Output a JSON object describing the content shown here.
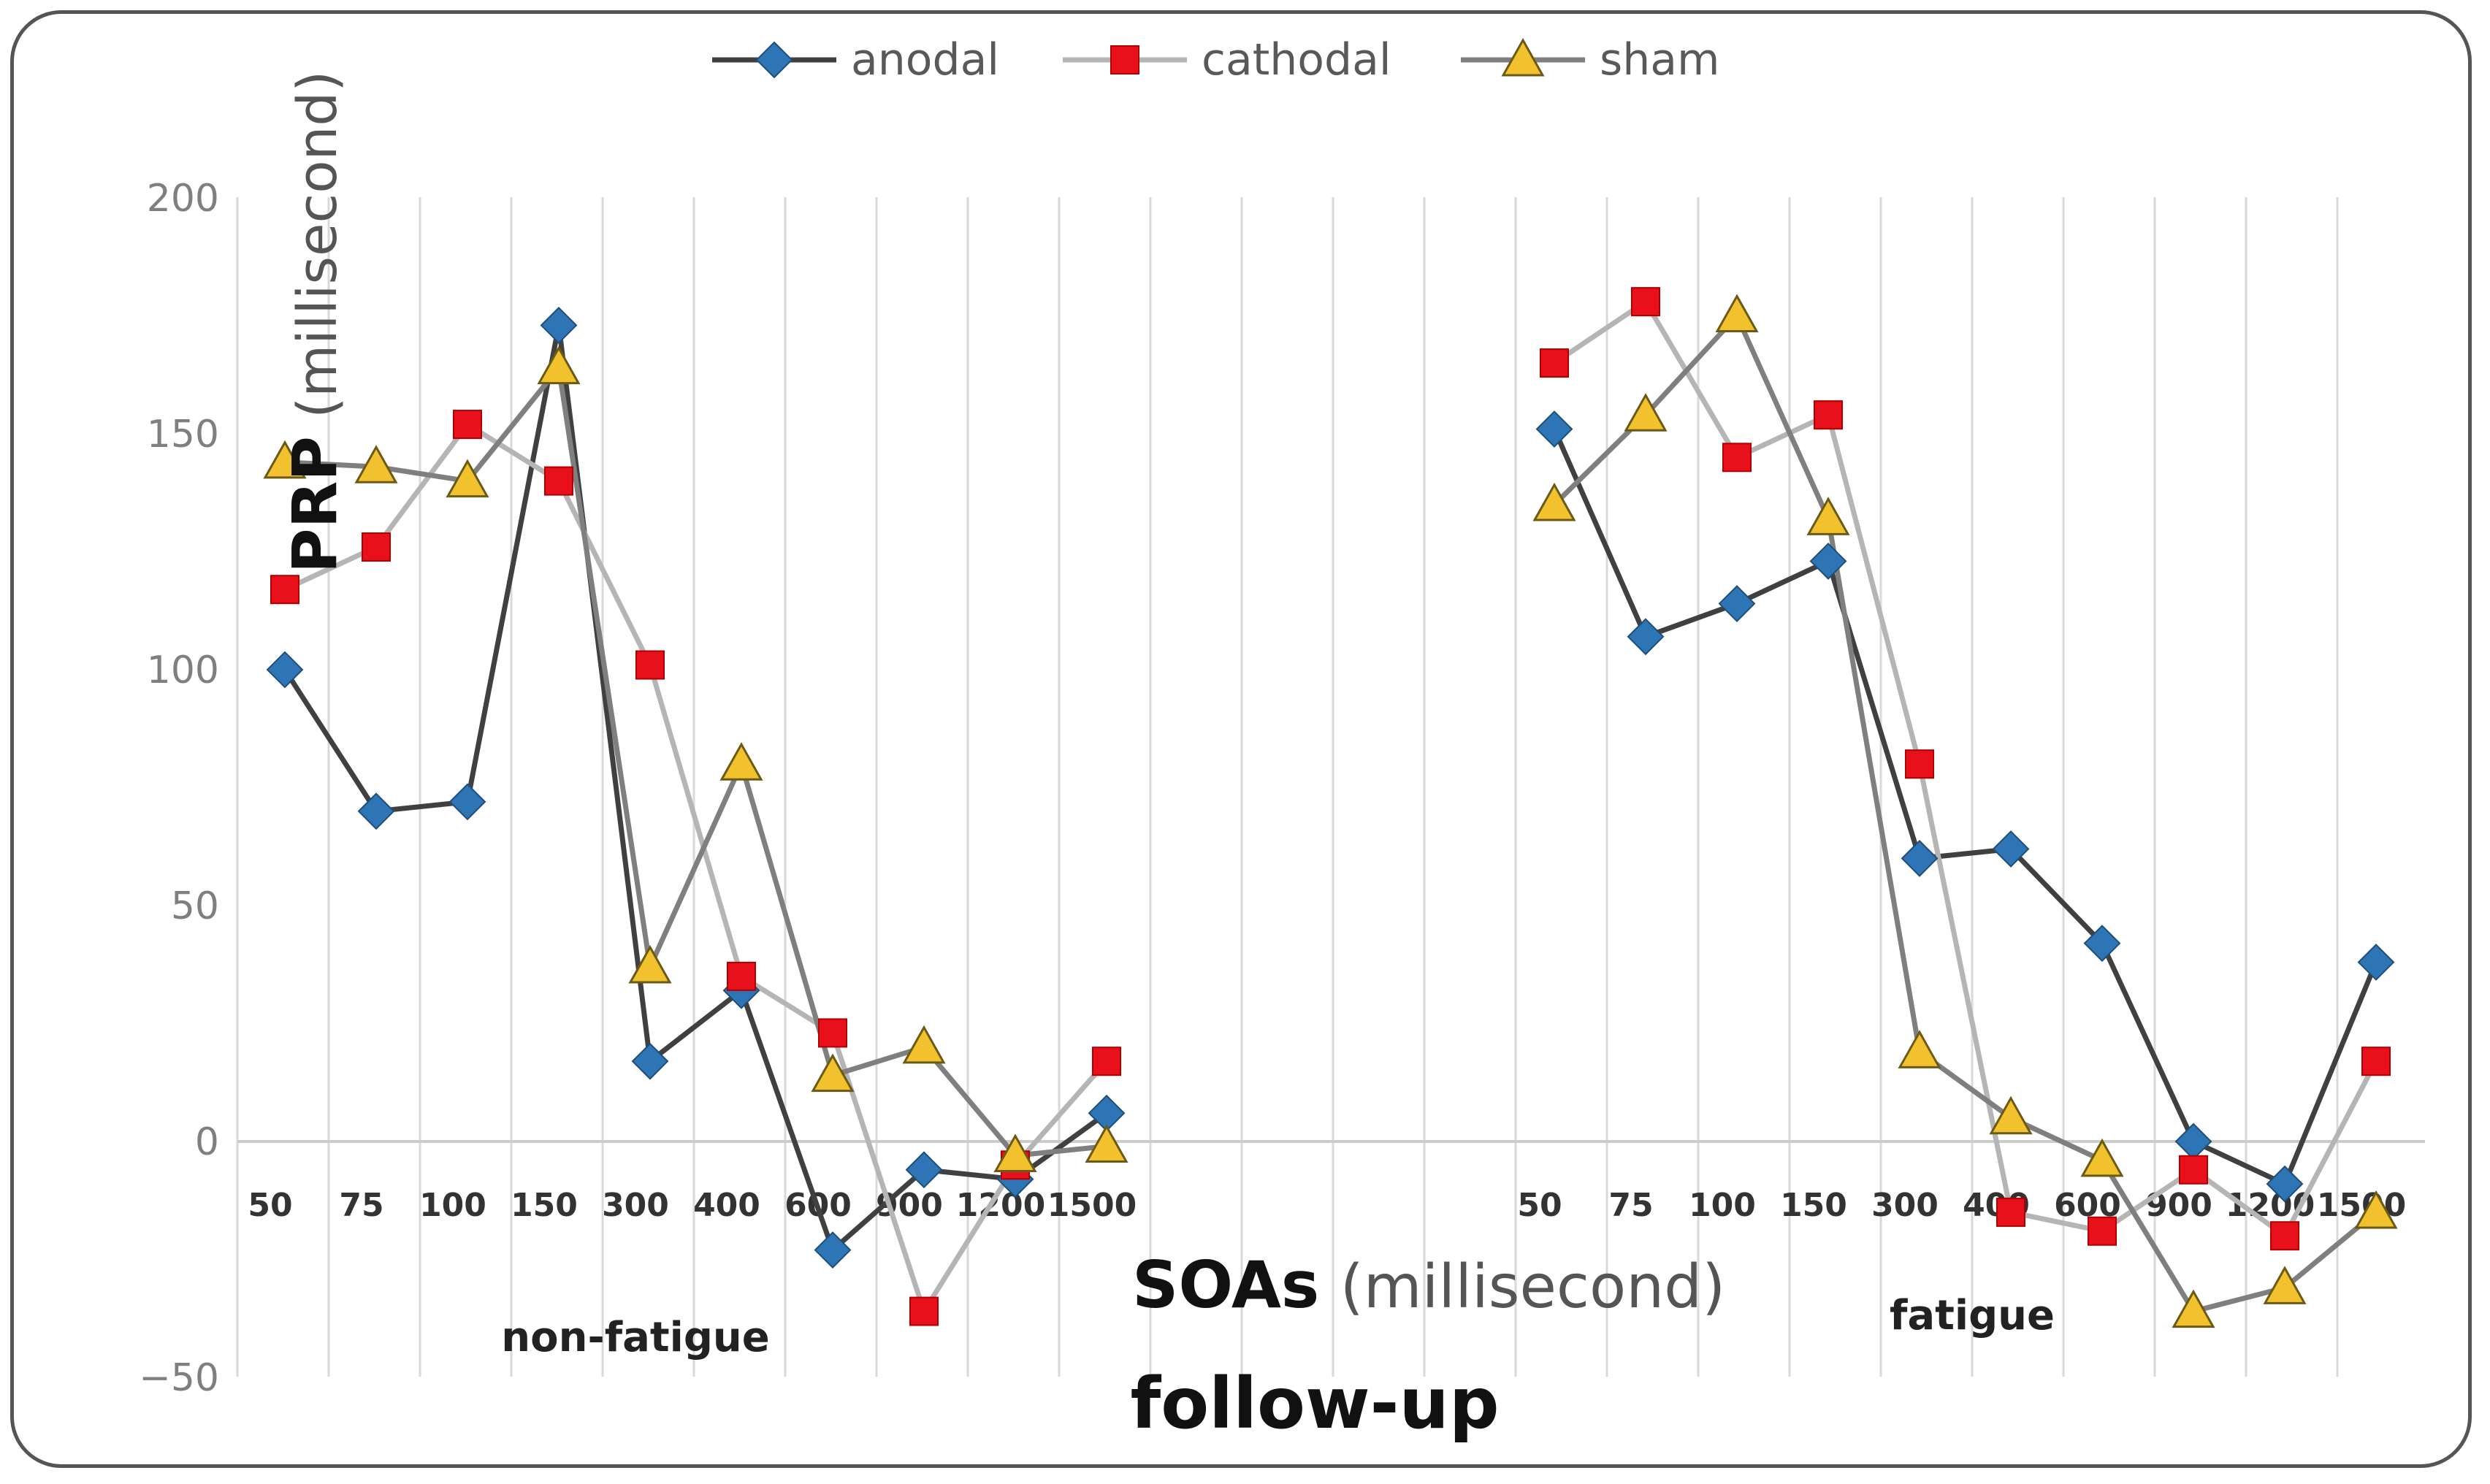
{
  "chart_data": {
    "type": "line",
    "categories": [
      "50",
      "75",
      "100",
      "150",
      "300",
      "400",
      "600",
      "900",
      "1200",
      "1500"
    ],
    "groups": [
      "non-fatigue",
      "fatigue"
    ],
    "title": "follow-up",
    "xlabel": {
      "bold": "SOAs",
      "light": "(millisecond)"
    },
    "ylabel": {
      "bold": "PRP",
      "light": "(millisecond)"
    },
    "ylim": [
      -50,
      200
    ],
    "yticks": [
      "200",
      "150",
      "100",
      "50",
      "0",
      "−50"
    ],
    "grid": "vertical",
    "legend_position": "top",
    "series": [
      {
        "name": "anodal",
        "marker": "diamond",
        "line_color": "#404040",
        "marker_color": "#2e75b6",
        "non_fatigue": [
          100,
          70,
          72,
          173,
          17,
          32,
          -23,
          -6,
          -8,
          6
        ],
        "fatigue": [
          151,
          107,
          114,
          123,
          60,
          62,
          42,
          0,
          -9,
          38
        ]
      },
      {
        "name": "cathodal",
        "marker": "square",
        "line_color": "#b5b5b5",
        "marker_color": "#e8111b",
        "non_fatigue": [
          117,
          126,
          152,
          140,
          101,
          35,
          23,
          -36,
          -5,
          17
        ],
        "fatigue": [
          165,
          178,
          145,
          154,
          80,
          -15,
          -19,
          -6,
          -20,
          17
        ]
      },
      {
        "name": "sham",
        "marker": "triangle",
        "line_color": "#7f7f7f",
        "marker_color": "#f2c12e",
        "non_fatigue": [
          144,
          143,
          140,
          164,
          37,
          80,
          14,
          20,
          -3,
          -1
        ],
        "fatigue": [
          135,
          154,
          175,
          132,
          19,
          5,
          -4,
          -36,
          -31,
          -15
        ]
      }
    ]
  }
}
